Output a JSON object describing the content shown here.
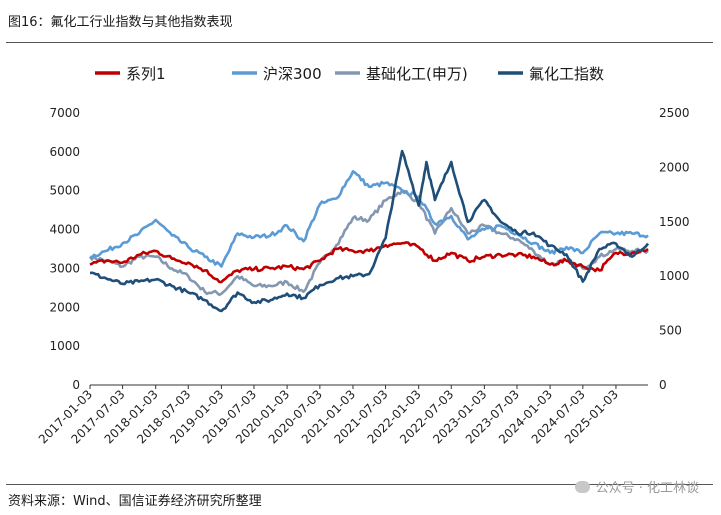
{
  "figure_title": "图16：氟化工行业指数与其他指数表现",
  "source_note": "资料来源：Wind、国信证券经济研究所整理",
  "watermark": "公众号 · 化工林谈",
  "watermark_icon": "wechat-icon",
  "chart_data": {
    "type": "line",
    "title": "",
    "xlabel": "",
    "ylabel": "",
    "ylabel_right": "",
    "grid": false,
    "legend_position": "top",
    "x_ticks": [
      "2017-01-03",
      "2017-07-03",
      "2018-01-03",
      "2018-07-03",
      "2019-01-03",
      "2019-07-03",
      "2020-01-03",
      "2020-07-03",
      "2021-01-03",
      "2021-07-03",
      "2022-01-03",
      "2022-07-03",
      "2023-01-03",
      "2023-07-03",
      "2024-01-03",
      "2024-07-03",
      "2025-01-03"
    ],
    "x_range": [
      "2017-01-03",
      "2025-06-30"
    ],
    "y_left": {
      "range": [
        0,
        7000
      ],
      "ticks": [
        0,
        1000,
        2000,
        3000,
        4000,
        5000,
        6000,
        7000
      ]
    },
    "y_right": {
      "range": [
        0,
        2500
      ],
      "ticks": [
        0,
        500,
        1000,
        1500,
        2000,
        2500
      ]
    },
    "series": [
      {
        "name": "系列1",
        "axis": "left",
        "color": "#c00000",
        "x": [
          "2017-01-03",
          "2017-04-03",
          "2017-07-03",
          "2017-10-03",
          "2018-01-03",
          "2018-04-03",
          "2018-07-03",
          "2018-10-03",
          "2019-01-03",
          "2019-04-03",
          "2019-07-03",
          "2019-10-03",
          "2020-01-03",
          "2020-04-03",
          "2020-07-03",
          "2020-10-03",
          "2021-01-03",
          "2021-04-03",
          "2021-07-03",
          "2021-10-03",
          "2022-01-03",
          "2022-04-03",
          "2022-07-03",
          "2022-10-03",
          "2023-01-03",
          "2023-04-03",
          "2023-07-03",
          "2023-10-03",
          "2024-01-03",
          "2024-04-03",
          "2024-07-03",
          "2024-10-03",
          "2025-01-03",
          "2025-04-03",
          "2025-06-30"
        ],
        "y": [
          3100,
          3200,
          3150,
          3350,
          3450,
          3250,
          3150,
          2950,
          2650,
          2950,
          2980,
          3000,
          3050,
          2980,
          3200,
          3500,
          3450,
          3450,
          3600,
          3650,
          3550,
          3200,
          3400,
          3200,
          3300,
          3350,
          3350,
          3300,
          3100,
          3200,
          3050,
          2950,
          3400,
          3400,
          3500
        ]
      },
      {
        "name": "沪深300",
        "axis": "left",
        "color": "#5b9bd5",
        "x": [
          "2017-01-03",
          "2017-04-03",
          "2017-07-03",
          "2017-10-03",
          "2018-01-03",
          "2018-04-03",
          "2018-07-03",
          "2018-10-03",
          "2019-01-03",
          "2019-04-03",
          "2019-07-03",
          "2019-10-03",
          "2020-01-03",
          "2020-04-03",
          "2020-07-03",
          "2020-10-03",
          "2021-01-03",
          "2021-04-03",
          "2021-07-03",
          "2021-10-03",
          "2022-01-03",
          "2022-04-03",
          "2022-07-03",
          "2022-10-03",
          "2023-01-03",
          "2023-04-03",
          "2023-07-03",
          "2023-10-03",
          "2024-01-03",
          "2024-04-03",
          "2024-07-03",
          "2024-10-03",
          "2025-01-03",
          "2025-04-03",
          "2025-06-30"
        ],
        "y": [
          3300,
          3450,
          3650,
          3900,
          4250,
          3850,
          3550,
          3300,
          3050,
          3900,
          3800,
          3850,
          4100,
          3700,
          4650,
          4800,
          5500,
          5100,
          5200,
          5000,
          4850,
          4150,
          4350,
          3750,
          4000,
          4100,
          3900,
          3650,
          3400,
          3550,
          3400,
          3900,
          3900,
          3900,
          3850
        ]
      },
      {
        "name": "基础化工(申万)",
        "axis": "left",
        "color": "#8497b0",
        "x": [
          "2017-01-03",
          "2017-04-03",
          "2017-07-03",
          "2017-10-03",
          "2018-01-03",
          "2018-04-03",
          "2018-07-03",
          "2018-10-03",
          "2019-01-03",
          "2019-04-03",
          "2019-07-03",
          "2019-10-03",
          "2020-01-03",
          "2020-04-03",
          "2020-07-03",
          "2020-10-03",
          "2021-01-03",
          "2021-04-03",
          "2021-07-03",
          "2021-10-03",
          "2022-01-03",
          "2022-04-03",
          "2022-07-03",
          "2022-10-03",
          "2023-01-03",
          "2023-04-03",
          "2023-07-03",
          "2023-10-03",
          "2024-01-03",
          "2024-04-03",
          "2024-07-03",
          "2024-10-03",
          "2025-01-03",
          "2025-04-03",
          "2025-06-30"
        ],
        "y": [
          3300,
          3200,
          3050,
          3300,
          3300,
          3000,
          2800,
          2400,
          2350,
          2800,
          2550,
          2550,
          2650,
          2400,
          3150,
          3600,
          4300,
          4250,
          4750,
          5000,
          4700,
          3900,
          4550,
          3900,
          4100,
          3900,
          3750,
          3450,
          3100,
          3200,
          3000,
          3300,
          3500,
          3450,
          3450
        ]
      },
      {
        "name": "氟化工指数",
        "axis": "right",
        "color": "#1f4e79",
        "x": [
          "2017-01-03",
          "2017-04-03",
          "2017-07-03",
          "2017-10-03",
          "2018-01-03",
          "2018-04-03",
          "2018-07-03",
          "2018-10-03",
          "2019-01-03",
          "2019-04-03",
          "2019-07-03",
          "2019-10-03",
          "2020-01-03",
          "2020-04-03",
          "2020-07-03",
          "2020-10-03",
          "2021-01-03",
          "2021-04-03",
          "2021-07-03",
          "2021-10-03",
          "2022-01-03",
          "2022-02-15",
          "2022-04-03",
          "2022-07-03",
          "2022-10-03",
          "2023-01-03",
          "2023-04-03",
          "2023-07-03",
          "2023-10-03",
          "2024-01-03",
          "2024-04-03",
          "2024-07-03",
          "2024-10-03",
          "2025-01-03",
          "2025-04-03",
          "2025-06-30"
        ],
        "y": [
          1030,
          980,
          930,
          950,
          970,
          910,
          850,
          780,
          680,
          850,
          760,
          780,
          840,
          800,
          920,
          980,
          1000,
          1020,
          1350,
          2150,
          1650,
          2050,
          1700,
          2050,
          1500,
          1700,
          1500,
          1400,
          1400,
          1280,
          1200,
          950,
          1250,
          1300,
          1180,
          1300
        ]
      }
    ]
  }
}
